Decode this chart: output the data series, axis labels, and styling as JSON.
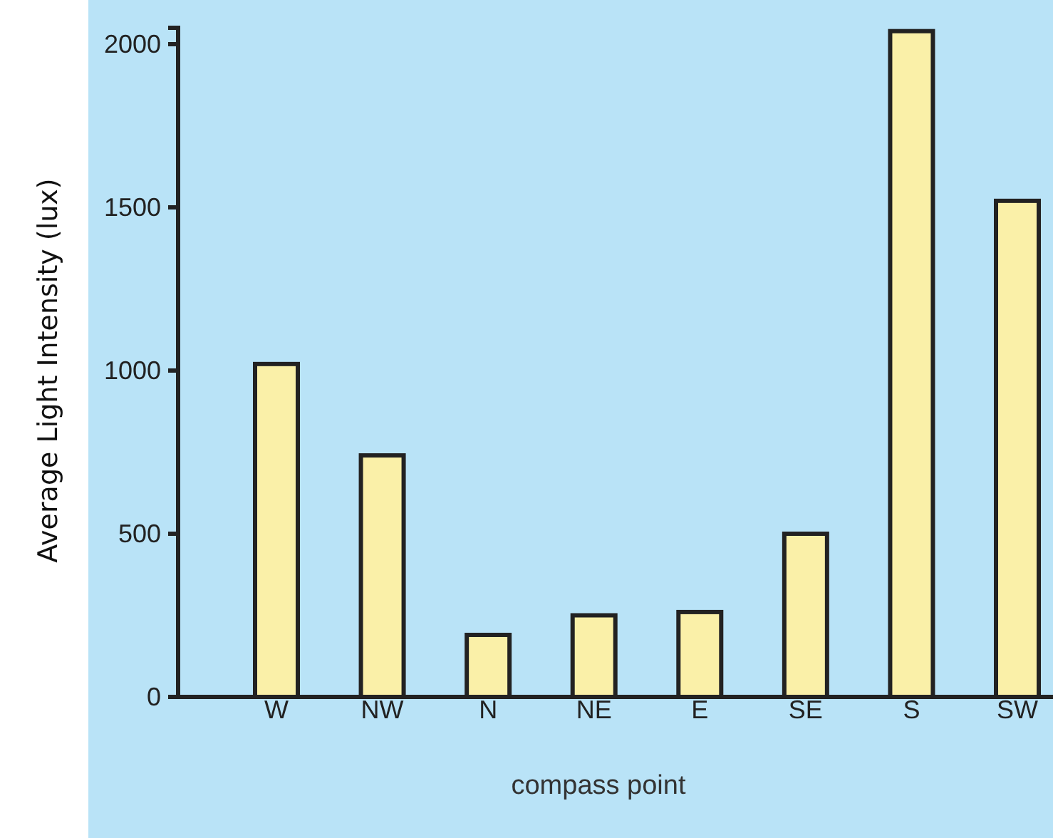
{
  "chart_data": {
    "type": "bar",
    "xlabel": "compass point",
    "ylabel": "Average Light Intensity (lux)",
    "categories": [
      "W",
      "NW",
      "N",
      "NE",
      "E",
      "SE",
      "S",
      "SW"
    ],
    "values": [
      1020,
      740,
      190,
      250,
      260,
      500,
      2040,
      1520
    ],
    "color": "#faf0a8",
    "ylim": [
      0,
      2050
    ],
    "yticks": [
      0,
      500,
      1000,
      1500,
      2000
    ],
    "grid": false
  }
}
